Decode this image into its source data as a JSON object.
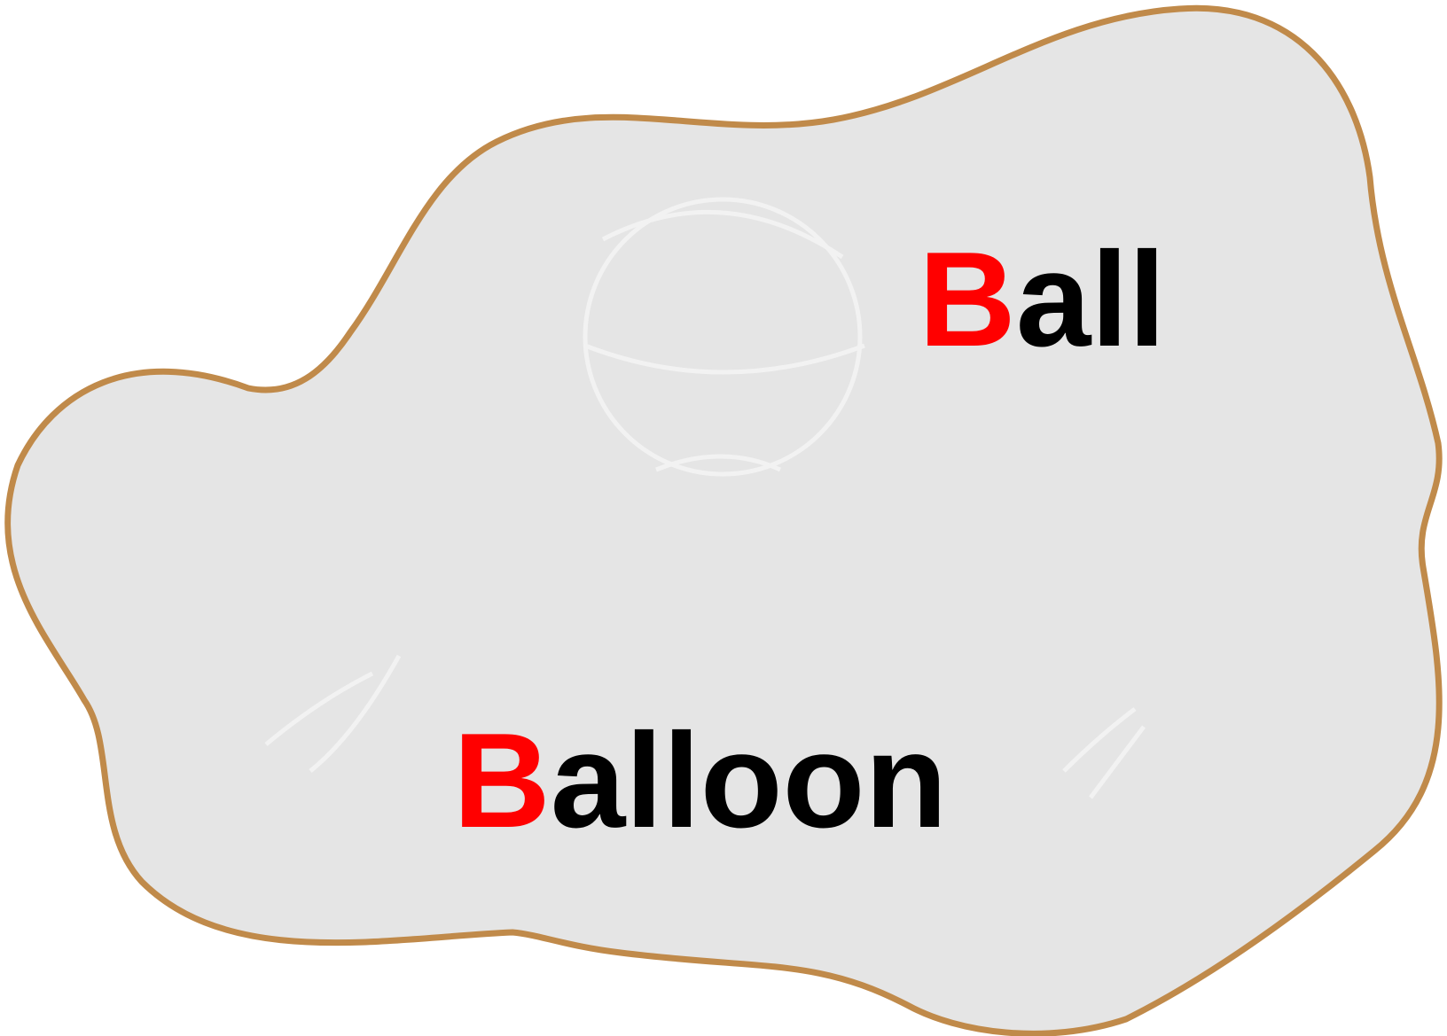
{
  "colors": {
    "blob_fill": "#e5e5e5",
    "blob_stroke": "#c08a4a",
    "initial_letter": "#ff0000",
    "text": "#000000",
    "ghost_strokes": "#f2f2f2"
  },
  "words": [
    {
      "initial": "B",
      "rest": "all",
      "icon": "ball-icon"
    },
    {
      "initial": "B",
      "rest": "alloon",
      "icon": "balloon-icon"
    }
  ]
}
